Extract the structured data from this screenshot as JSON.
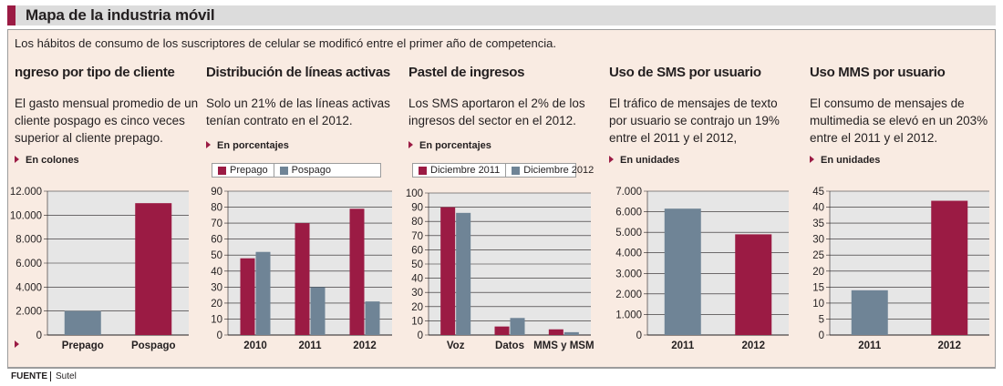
{
  "header": {
    "title": "Mapa de la industria móvil"
  },
  "intro": "Los hábitos de consumo de los suscriptores de celular se modificó entre el primer año de competencia.",
  "source": {
    "label": "FUENTE",
    "value": "Sutel"
  },
  "colors": {
    "crimson": "#9b1b44",
    "slate": "#6f8496",
    "plot_bg": "#e6e6e6",
    "panel_bg": "#f9ebe2"
  },
  "columns": [
    {
      "title": "ngreso por tipo de cliente",
      "description": [
        "El gasto mensual promedio de un",
        "cliente pospago es cinco veces",
        "superior al cliente prepago."
      ],
      "unit": "En colones",
      "legend": null
    },
    {
      "title": "Distribución de líneas activas",
      "description": [
        "Solo un 21% de las líneas activas",
        "tenían contrato en el 2012."
      ],
      "unit": "En porcentajes",
      "legend": [
        "Prepago",
        "Pospago"
      ]
    },
    {
      "title": "Pastel de ingresos",
      "description": [
        "Los SMS aportaron el 2% de los",
        "ingresos del sector en el 2012."
      ],
      "unit": "En porcentajes",
      "legend": [
        "Diciembre 2011",
        "Diciembre 2012"
      ]
    },
    {
      "title": "Uso de SMS por usuario",
      "description": [
        "El tráfico de mensajes de texto",
        "por usuario se contrajo un 19%",
        "entre el 2011 y el 2012,"
      ],
      "unit": "En unidades",
      "legend": null
    },
    {
      "title": "Uso MMS por usuario",
      "description": [
        "El consumo de mensajes de",
        "multimedia se elevó en un 203%",
        "entre el 2011 y el 2012."
      ],
      "unit": "En unidades",
      "legend": null
    }
  ],
  "chart_data": [
    {
      "type": "bar",
      "categories": [
        "Prepago",
        "Pospago"
      ],
      "values": [
        2000,
        11000
      ],
      "bar_colors": [
        "#6f8496",
        "#9b1b44"
      ],
      "ylim": [
        0,
        12000
      ],
      "yticks": [
        0,
        2000,
        4000,
        6000,
        8000,
        10000,
        12000
      ],
      "ytick_labels": [
        "0",
        "2.000",
        "4.000",
        "6.000",
        "8.000",
        "10.000",
        "12.000"
      ],
      "title": "ngreso por tipo de cliente",
      "xlabel": "",
      "ylabel": ""
    },
    {
      "type": "bar",
      "categories": [
        "2010",
        "2011",
        "2012"
      ],
      "series": [
        {
          "name": "Prepago",
          "color": "#9b1b44",
          "values": [
            48,
            70,
            79
          ]
        },
        {
          "name": "Pospago",
          "color": "#6f8496",
          "values": [
            52,
            30,
            21
          ]
        }
      ],
      "ylim": [
        0,
        90
      ],
      "yticks": [
        0,
        10,
        20,
        30,
        40,
        50,
        60,
        70,
        80,
        90
      ],
      "ytick_labels": [
        "0",
        "10",
        "20",
        "30",
        "40",
        "50",
        "60",
        "70",
        "80",
        "90"
      ],
      "legend_position": "top",
      "title": "Distribución de líneas activas",
      "xlabel": "",
      "ylabel": ""
    },
    {
      "type": "bar",
      "categories": [
        "Voz",
        "Datos",
        "MMS y MSM"
      ],
      "series": [
        {
          "name": "Diciembre 2011",
          "color": "#9b1b44",
          "values": [
            90,
            6,
            4
          ]
        },
        {
          "name": "Diciembre 2012",
          "color": "#6f8496",
          "values": [
            86,
            12,
            2
          ]
        }
      ],
      "ylim": [
        0,
        100
      ],
      "yticks": [
        0,
        10,
        20,
        30,
        40,
        50,
        60,
        70,
        80,
        90,
        100
      ],
      "ytick_labels": [
        "0",
        "10",
        "20",
        "30",
        "40",
        "50",
        "60",
        "70",
        "80",
        "90",
        "100"
      ],
      "legend_position": "top",
      "title": "Pastel de ingresos",
      "xlabel": "",
      "ylabel": ""
    },
    {
      "type": "bar",
      "categories": [
        "2011",
        "2012"
      ],
      "values": [
        6150,
        4900
      ],
      "bar_colors": [
        "#6f8496",
        "#9b1b44"
      ],
      "ylim": [
        0,
        7000
      ],
      "yticks": [
        0,
        1000,
        2000,
        3000,
        4000,
        5000,
        6000,
        7000
      ],
      "ytick_labels": [
        "0",
        "1.000",
        "2.000",
        "3.000",
        "4.000",
        "5.000",
        "6.000",
        "7.000"
      ],
      "title": "Uso de SMS por usuario",
      "xlabel": "",
      "ylabel": ""
    },
    {
      "type": "bar",
      "categories": [
        "2011",
        "2012"
      ],
      "values": [
        14,
        42
      ],
      "bar_colors": [
        "#6f8496",
        "#9b1b44"
      ],
      "ylim": [
        0,
        45
      ],
      "yticks": [
        0,
        5,
        10,
        15,
        20,
        25,
        30,
        35,
        40,
        45
      ],
      "ytick_labels": [
        "0",
        "5",
        "10",
        "15",
        "20",
        "25",
        "30",
        "35",
        "40",
        "45"
      ],
      "title": "Uso MMS por usuario",
      "xlabel": "",
      "ylabel": ""
    }
  ]
}
